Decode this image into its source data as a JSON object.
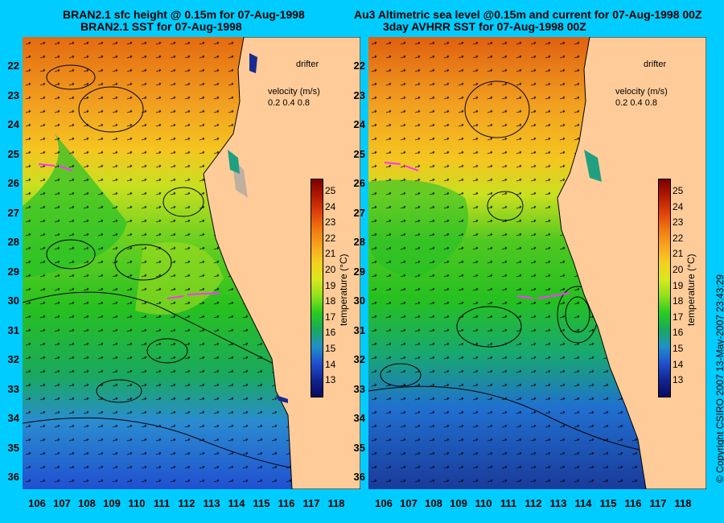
{
  "left_panel": {
    "title_line1": "BRAN2.1 sfc height @ 0.15m for 07-Aug-1998",
    "title_line2": "BRAN2.1 SST for 07-Aug-1998"
  },
  "right_panel": {
    "title_line1": "Au3 Altimetric sea level  @0.15m and current for 07-Aug-1998 00Z",
    "title_line2": "3day AVHRR SST for 07-Aug-1998 00Z"
  },
  "legend": {
    "drifter_label": "drifter",
    "velocity_label": "velocity (m/s)",
    "velocity_values": "0.2 0.4 0.8"
  },
  "colorbar": {
    "label": "temperature (°C)",
    "ticks": [
      "25",
      "24",
      "23",
      "22",
      "21",
      "20",
      "19",
      "18",
      "17",
      "16",
      "15",
      "14",
      "13"
    ],
    "colors": [
      "#7a0000",
      "#b31a00",
      "#e0420b",
      "#f07a10",
      "#f7a520",
      "#f5d020",
      "#d8e81e",
      "#8fe01c",
      "#26cc20",
      "#1aa860",
      "#2090c8",
      "#2050d0",
      "#102590",
      "#0a0a60"
    ]
  },
  "axes": {
    "latitudes": [
      "22",
      "23",
      "24",
      "25",
      "26",
      "27",
      "28",
      "29",
      "30",
      "31",
      "32",
      "33",
      "34",
      "35",
      "36"
    ],
    "longitudes": [
      "106",
      "107",
      "108",
      "109",
      "110",
      "111",
      "112",
      "113",
      "114",
      "115",
      "116",
      "117",
      "118"
    ]
  },
  "copyright": "© Copyright CSIRO 2007   13-May-2007 23:43:29"
}
